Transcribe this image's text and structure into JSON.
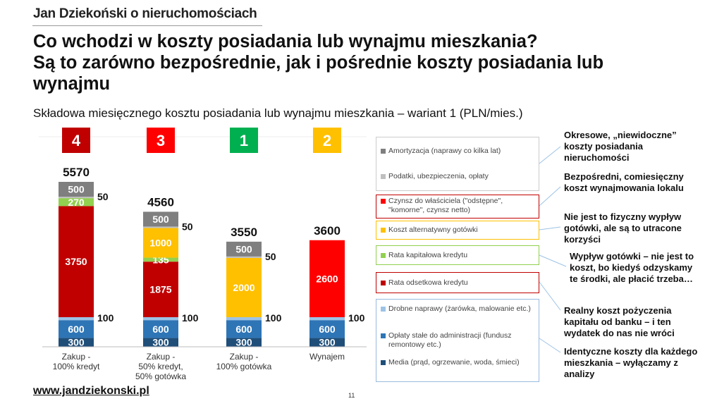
{
  "header": {
    "brand": "Jan Dziekoński o nieruchomościach",
    "title_line1": "Co wchodzi w koszty posiadania lub wynajmu mieszkania?",
    "title_line2": "Są to zarówno bezpośrednie, jak i pośrednie koszty posiadania lub",
    "title_line3": "wynajmu",
    "subtitle": "Składowa miesięcznego kosztu posiadania lub wynajmu mieszkania – wariant 1 (PLN/mies.)"
  },
  "footer": {
    "url": "www.jandziekonski.pl",
    "page": "11"
  },
  "colors": {
    "media": "#1f4e79",
    "oplaty": "#2e75b6",
    "naprawy": "#9dc3e6",
    "odsetki": "#c00000",
    "kapital": "#92d050",
    "alternatywny": "#ffc000",
    "czynsz": "#ff0000",
    "podatki": "#bfbfbf",
    "amortyzacja": "#7f7f7f",
    "rank4": "#c00000",
    "rank3": "#ff0000",
    "rank1": "#00b050",
    "rank2": "#ffc000"
  },
  "chart_data": {
    "type": "bar",
    "stacked": true,
    "categories": [
      "Zakup -\n100% kredyt",
      "Zakup -\n50% kredyt,\n50% gotówka",
      "Zakup -\n100% gotówka",
      "Wynajem"
    ],
    "ranks": [
      "4",
      "3",
      "1",
      "2"
    ],
    "totals": [
      "5570",
      "4560",
      "3550",
      "3600"
    ],
    "series": [
      {
        "key": "media",
        "values": [
          300,
          300,
          300,
          300
        ]
      },
      {
        "key": "oplaty",
        "values": [
          600,
          600,
          600,
          600
        ]
      },
      {
        "key": "naprawy",
        "values": [
          100,
          100,
          100,
          100
        ]
      },
      {
        "key": "odsetki",
        "values": [
          3750,
          1875,
          0,
          0
        ]
      },
      {
        "key": "kapital",
        "values": [
          270,
          135,
          0,
          0
        ]
      },
      {
        "key": "alternatywny",
        "values": [
          0,
          1000,
          2000,
          0
        ]
      },
      {
        "key": "czynsz",
        "values": [
          0,
          0,
          0,
          2600
        ]
      },
      {
        "key": "podatki",
        "values": [
          50,
          50,
          50,
          0
        ]
      },
      {
        "key": "amortyzacja",
        "values": [
          500,
          500,
          500,
          0
        ]
      }
    ],
    "labels_inside": {
      "media": [
        "300",
        "300",
        "300",
        "300"
      ],
      "oplaty": [
        "600",
        "600",
        "600",
        "600"
      ],
      "odsetki": [
        "3750",
        "1875",
        "",
        ""
      ],
      "kapital": [
        "270",
        "135",
        "",
        ""
      ],
      "alternatywny": [
        "",
        "1000",
        "2000",
        ""
      ],
      "czynsz": [
        "",
        "",
        "",
        "2600"
      ],
      "amortyzacja": [
        "500",
        "500",
        "500",
        ""
      ]
    },
    "labels_outside": {
      "naprawy": [
        "100",
        "100",
        "100",
        "100"
      ],
      "podatki": [
        "50",
        "50",
        "50",
        ""
      ]
    },
    "ylim": [
      0,
      5700
    ],
    "grid": false,
    "legend": [
      {
        "key": "amortyzacja",
        "label": "Amortyzacja (naprawy co kilka lat)"
      },
      {
        "key": "podatki",
        "label": "Podatki, ubezpieczenia, opłaty"
      },
      {
        "key": "czynsz",
        "label": "Czynsz do właściciela (\"odstępne\", \"komorne\", czynsz netto)"
      },
      {
        "key": "alternatywny",
        "label": "Koszt alternatywny gotówki"
      },
      {
        "key": "kapital",
        "label": "Rata kapitałowa kredytu"
      },
      {
        "key": "odsetki",
        "label": "Rata odsetkowa kredytu"
      },
      {
        "key": "naprawy",
        "label": "Drobne naprawy (żarówka, malowanie etc.)"
      },
      {
        "key": "oplaty",
        "label": "Opłaty stałe do administracji (fundusz remontowy etc.)"
      },
      {
        "key": "media",
        "label": "Media (prąd, ogrzewanie, woda, śmieci)"
      }
    ]
  },
  "notes": [
    "Okresowe, „niewidoczne” koszty posiadania nieruchomości",
    "Bezpośredni, comiesięczny koszt wynajmowania lokalu",
    "Nie jest to fizyczny wypływ gotówki, ale są to utracone korzyści",
    "Wypływ gotówki – nie jest to koszt, bo kiedyś odzyskamy te środki, ale płacić trzeba…",
    "Realny koszt pożyczenia kapitału od banku – i ten wydatek do nas nie wróci",
    "Identyczne koszty dla każdego mieszkania – wyłączamy z analizy"
  ]
}
